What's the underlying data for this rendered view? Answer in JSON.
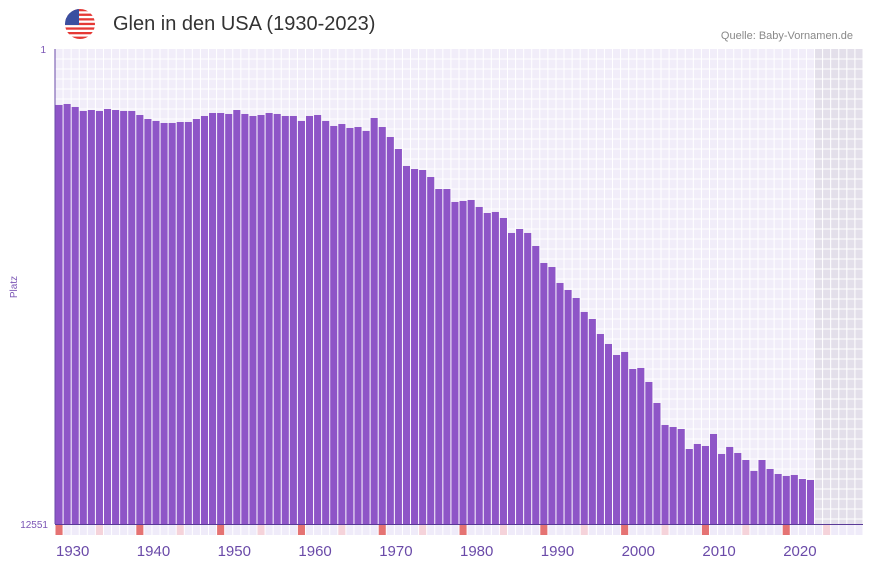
{
  "header": {
    "title": "Glen in den USA (1930-2023)",
    "source": "Quelle: Baby-Vornamen.de",
    "flag_icon": "us-flag-icon"
  },
  "chart_data": {
    "type": "bar",
    "title": "Glen in den USA (1930-2023)",
    "xlabel": "",
    "ylabel": "Platz",
    "ylim": [
      1,
      12551
    ],
    "y_inverted": true,
    "y_tick_labels": [
      "1",
      "12551"
    ],
    "x_range": [
      1930,
      2029
    ],
    "x_tick_labels": [
      "1930",
      "1940",
      "1950",
      "1960",
      "1970",
      "1980",
      "1990",
      "2000",
      "2010",
      "2020"
    ],
    "bar_color": "#8e55c7",
    "future_shade_from": 2024,
    "marker_colors": {
      "decade": "#e57373",
      "half_decade": "#f5d3da",
      "other": "#efebf9"
    },
    "categories": [
      1930,
      1931,
      1932,
      1933,
      1934,
      1935,
      1936,
      1937,
      1938,
      1939,
      1940,
      1941,
      1942,
      1943,
      1944,
      1945,
      1946,
      1947,
      1948,
      1949,
      1950,
      1951,
      1952,
      1953,
      1954,
      1955,
      1956,
      1957,
      1958,
      1959,
      1960,
      1961,
      1962,
      1963,
      1964,
      1965,
      1966,
      1967,
      1968,
      1969,
      1970,
      1971,
      1972,
      1973,
      1974,
      1975,
      1976,
      1977,
      1978,
      1979,
      1980,
      1981,
      1982,
      1983,
      1984,
      1985,
      1986,
      1987,
      1988,
      1989,
      1990,
      1991,
      1992,
      1993,
      1994,
      1995,
      1996,
      1997,
      1998,
      1999,
      2000,
      2001,
      2002,
      2003,
      2004,
      2005,
      2006,
      2007,
      2008,
      2009,
      2010,
      2011,
      2012,
      2013,
      2014,
      2015,
      2016,
      2017,
      2018,
      2019,
      2020,
      2021,
      2022,
      2023
    ],
    "values": [
      1480,
      1454,
      1533,
      1639,
      1613,
      1639,
      1586,
      1613,
      1639,
      1639,
      1745,
      1850,
      1903,
      1956,
      1956,
      1930,
      1930,
      1850,
      1771,
      1692,
      1692,
      1718,
      1613,
      1718,
      1771,
      1745,
      1692,
      1718,
      1771,
      1771,
      1903,
      1771,
      1745,
      1903,
      2035,
      1983,
      2088,
      2062,
      2167,
      1824,
      2062,
      2326,
      2643,
      3092,
      3171,
      3198,
      3383,
      3700,
      3700,
      4043,
      4017,
      3990,
      4175,
      4334,
      4307,
      4466,
      4862,
      4757,
      4862,
      5206,
      5655,
      5761,
      6183,
      6368,
      6580,
      6949,
      7134,
      7531,
      7795,
      8086,
      8006,
      8455,
      8429,
      8799,
      9354,
      9935,
      9988,
      10041,
      10569,
      10437,
      10490,
      10173,
      10701,
      10516,
      10675,
      10860,
      11150,
      10860,
      11097,
      11230,
      11282,
      11256,
      11362,
      11388
    ]
  }
}
